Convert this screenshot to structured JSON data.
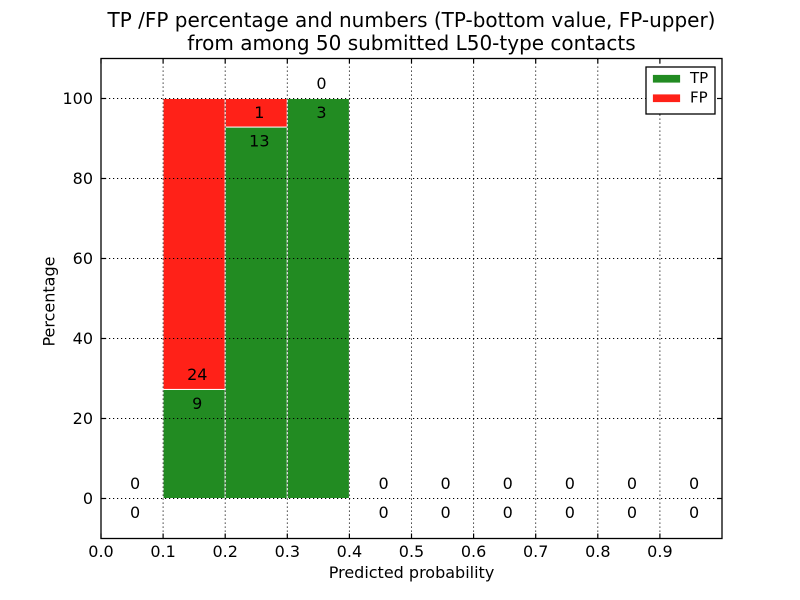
{
  "figure": {
    "background": "#ffffff",
    "title_line1": "TP /FP percentage and numbers (TP-bottom value, FP-upper)",
    "title_line2": "from among 50 submitted L50-type contacts",
    "xlabel": "Predicted probability",
    "ylabel": "Percentage"
  },
  "chart_data": {
    "type": "bar",
    "stacked": true,
    "title": "TP /FP percentage and numbers (TP-bottom value, FP-upper)",
    "subtitle": "from among 50 submitted L50-type contacts",
    "xlabel": "Predicted probability",
    "ylabel": "Percentage",
    "xlim": [
      0.0,
      1.0
    ],
    "ylim": [
      -10,
      110
    ],
    "xticks": [
      0.0,
      0.1,
      0.2,
      0.3,
      0.4,
      0.5,
      0.6,
      0.7,
      0.8,
      0.9
    ],
    "xtick_labels": [
      "0.0",
      "0.1",
      "0.2",
      "0.3",
      "0.4",
      "0.5",
      "0.6",
      "0.7",
      "0.8",
      "0.9"
    ],
    "yticks": [
      0,
      20,
      40,
      60,
      80,
      100
    ],
    "ytick_labels": [
      "0",
      "20",
      "40",
      "60",
      "80",
      "100"
    ],
    "grid": true,
    "grid_style": "dotted",
    "bin_width": 0.1,
    "colors": {
      "tp": "#228b22",
      "fp": "#ff2118",
      "bar_edge": "#ffffff",
      "axes": "#000000"
    },
    "legend": {
      "position": "upper right",
      "entries": [
        {
          "label": "TP",
          "color": "#228b22"
        },
        {
          "label": "FP",
          "color": "#ff2118"
        }
      ]
    },
    "bins": [
      {
        "x_start": 0.0,
        "x_end": 0.1,
        "tp_count": 0,
        "fp_count": 0,
        "tp_pct": 0,
        "fp_pct": 0
      },
      {
        "x_start": 0.1,
        "x_end": 0.2,
        "tp_count": 9,
        "fp_count": 24,
        "tp_pct": 27.27,
        "fp_pct": 72.73
      },
      {
        "x_start": 0.2,
        "x_end": 0.3,
        "tp_count": 13,
        "fp_count": 1,
        "tp_pct": 92.86,
        "fp_pct": 7.14
      },
      {
        "x_start": 0.3,
        "x_end": 0.4,
        "tp_count": 3,
        "fp_count": 0,
        "tp_pct": 100,
        "fp_pct": 0
      },
      {
        "x_start": 0.4,
        "x_end": 0.5,
        "tp_count": 0,
        "fp_count": 0,
        "tp_pct": 0,
        "fp_pct": 0
      },
      {
        "x_start": 0.5,
        "x_end": 0.6,
        "tp_count": 0,
        "fp_count": 0,
        "tp_pct": 0,
        "fp_pct": 0
      },
      {
        "x_start": 0.6,
        "x_end": 0.7,
        "tp_count": 0,
        "fp_count": 0,
        "tp_pct": 0,
        "fp_pct": 0
      },
      {
        "x_start": 0.7,
        "x_end": 0.8,
        "tp_count": 0,
        "fp_count": 0,
        "tp_pct": 0,
        "fp_pct": 0
      },
      {
        "x_start": 0.8,
        "x_end": 0.9,
        "tp_count": 0,
        "fp_count": 0,
        "tp_pct": 0,
        "fp_pct": 0
      },
      {
        "x_start": 0.9,
        "x_end": 1.0,
        "tp_count": 0,
        "fp_count": 0,
        "tp_pct": 0,
        "fp_pct": 0
      }
    ],
    "series": [
      {
        "name": "TP",
        "color": "#228b22",
        "counts": [
          0,
          9,
          13,
          3,
          0,
          0,
          0,
          0,
          0,
          0
        ],
        "values_pct": [
          0,
          27.27,
          92.86,
          100,
          0,
          0,
          0,
          0,
          0,
          0
        ]
      },
      {
        "name": "FP",
        "color": "#ff2118",
        "counts": [
          0,
          24,
          1,
          0,
          0,
          0,
          0,
          0,
          0,
          0
        ],
        "values_pct": [
          0,
          72.73,
          7.14,
          0,
          0,
          0,
          0,
          0,
          0,
          0
        ]
      }
    ]
  }
}
